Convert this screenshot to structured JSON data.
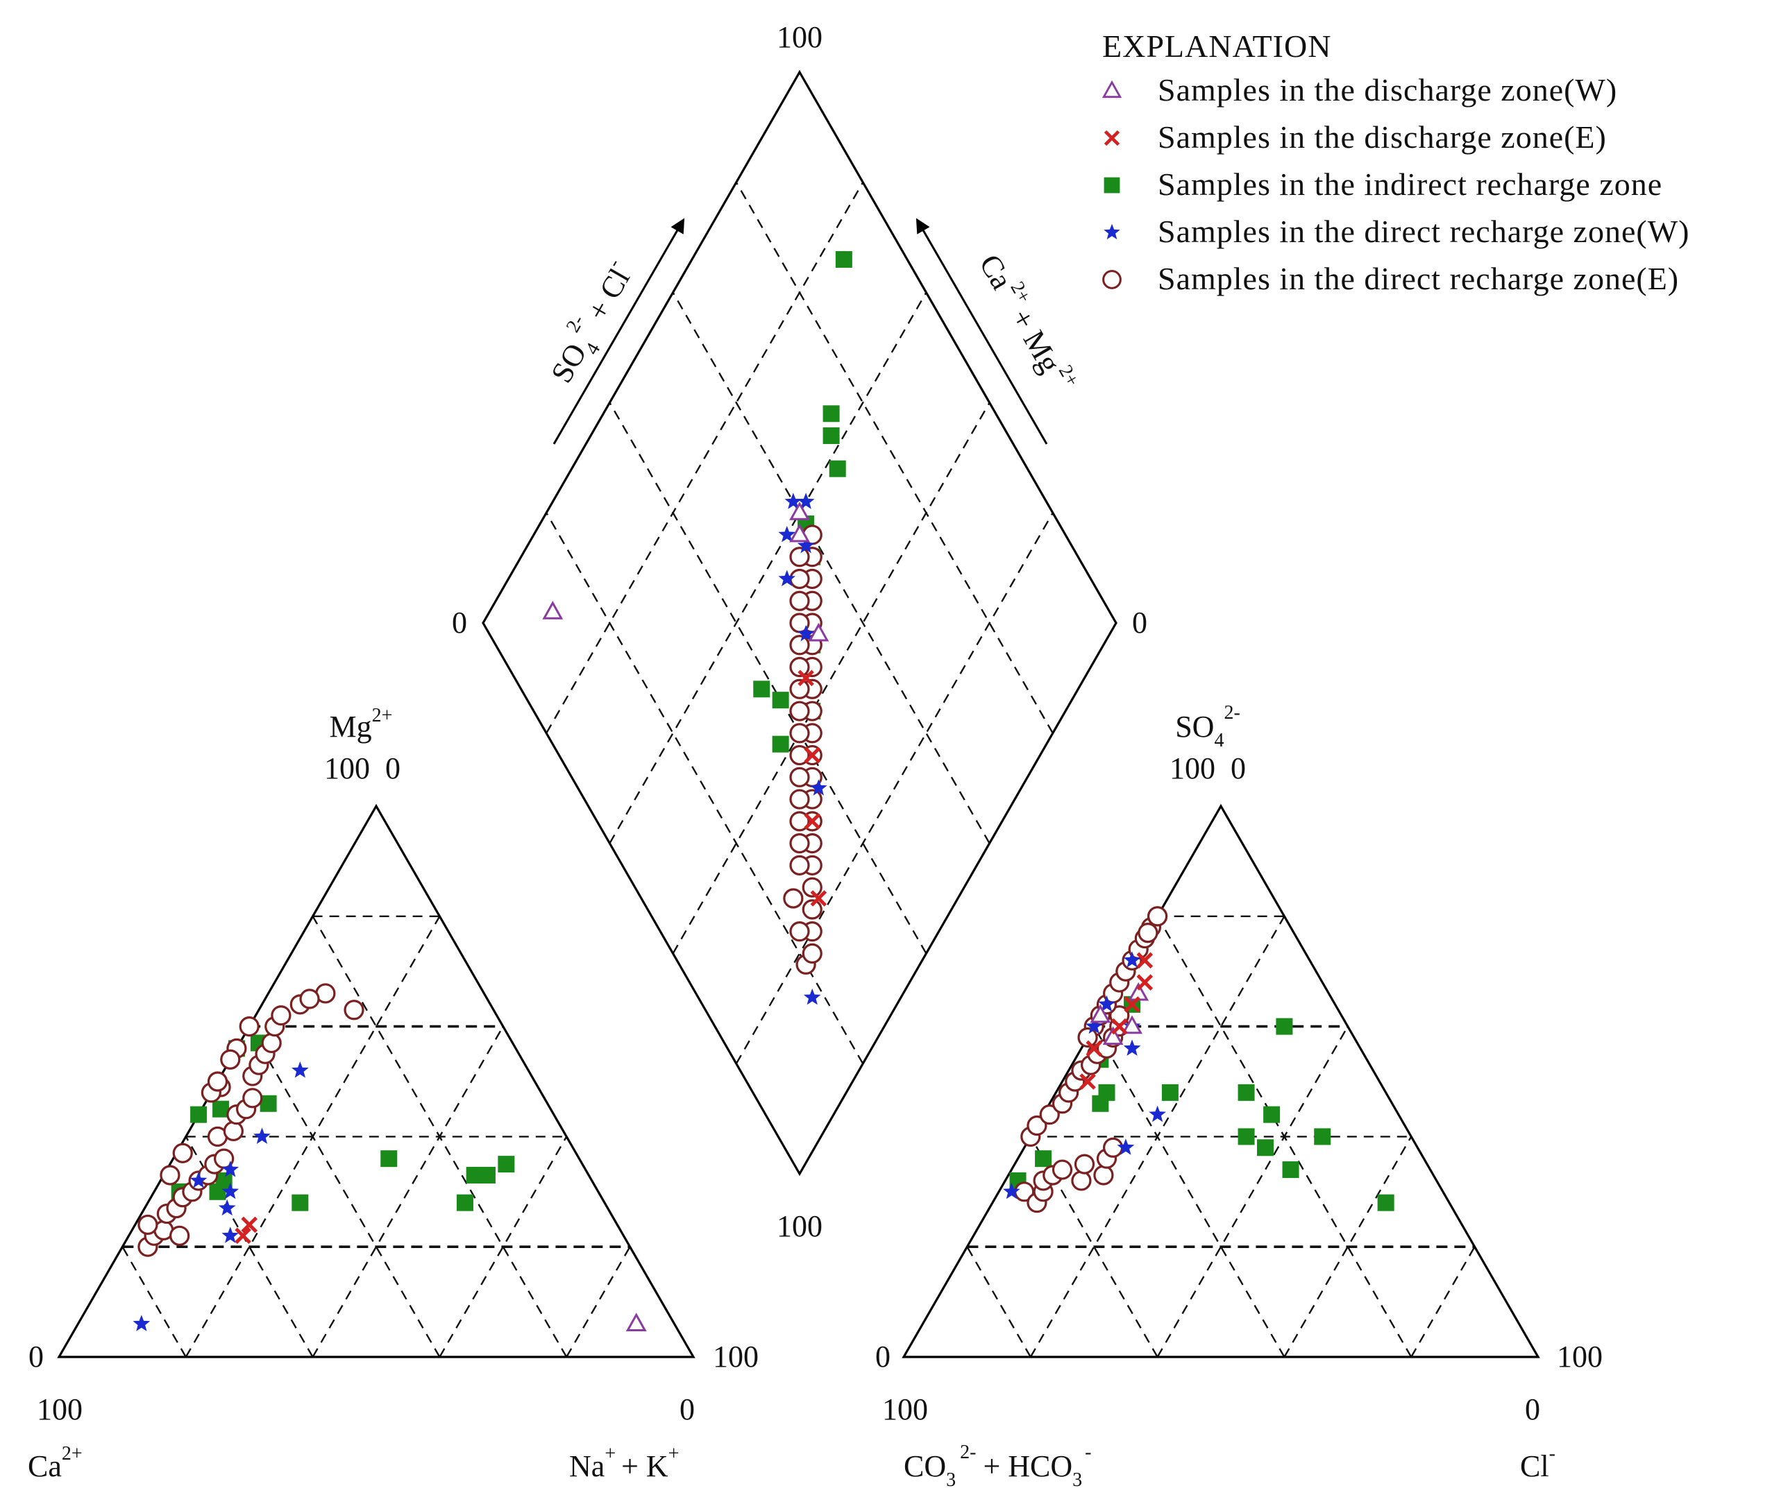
{
  "chart_data": {
    "type": "scatter",
    "subtype": "piper-trilinear",
    "legend": {
      "title": "EXPLANATION",
      "placement": "top-right",
      "entries": [
        {
          "key": "discharge_w",
          "label": "Samples in the discharge zone(W)",
          "marker": "triangle-open",
          "color": "#8a3aa0"
        },
        {
          "key": "discharge_e",
          "label": "Samples in the discharge zone(E)",
          "marker": "x",
          "color": "#d42020"
        },
        {
          "key": "indirect",
          "label": "Samples in the indirect  recharge zone",
          "marker": "square",
          "color": "#1a8a1a"
        },
        {
          "key": "direct_w",
          "label": "Samples in the direct  recharge zone(W)",
          "marker": "star",
          "color": "#1a2ad0"
        },
        {
          "key": "direct_e",
          "label": "Samples in the direct  recharge zone(E)",
          "marker": "circle-open",
          "color": "#7a2020"
        }
      ]
    },
    "cation_triangle": {
      "apex": {
        "name": "Mg",
        "sup": "2+",
        "label_left": "100",
        "label_right": "0"
      },
      "bottom_left": {
        "name": "Ca",
        "sup": "2+",
        "tick": "0",
        "below": "100"
      },
      "bottom_right": {
        "name": "Na",
        "sup": "+",
        "name2": "+ K",
        "sup2": "+",
        "tick": "100",
        "below": "0"
      },
      "series": {
        "direct_e": [
          [
            76,
            20
          ],
          [
            74,
            22
          ],
          [
            72,
            23
          ],
          [
            70,
            26
          ],
          [
            68,
            27
          ],
          [
            66,
            29
          ],
          [
            64,
            30
          ],
          [
            62,
            32
          ],
          [
            60,
            33
          ],
          [
            58,
            35
          ],
          [
            56,
            36
          ],
          [
            62,
            37
          ],
          [
            55,
            40
          ],
          [
            52,
            41
          ],
          [
            50,
            44
          ],
          [
            48,
            45
          ],
          [
            46,
            47
          ],
          [
            50,
            49
          ],
          [
            52,
            48
          ],
          [
            54,
            50
          ],
          [
            44,
            51
          ],
          [
            42,
            53
          ],
          [
            40,
            55
          ],
          [
            38,
            57
          ],
          [
            45,
            56
          ],
          [
            47,
            54
          ],
          [
            36,
            60
          ],
          [
            34,
            62
          ],
          [
            30,
            64
          ],
          [
            25,
            66
          ],
          [
            28,
            65
          ],
          [
            40,
            60
          ],
          [
            22,
            63
          ],
          [
            70,
            22
          ],
          [
            74,
            24
          ],
          [
            66,
            33
          ]
        ],
        "direct_w": [
          [
            84,
            6
          ],
          [
            58,
            30
          ],
          [
            60,
            27
          ],
          [
            62,
            32
          ],
          [
            56,
            34
          ],
          [
            48,
            40
          ],
          [
            36,
            52
          ],
          [
            62,
            22
          ]
        ],
        "indirect": [
          [
            44,
            46
          ],
          [
            30,
            36
          ],
          [
            22,
            28
          ],
          [
            16,
            33
          ],
          [
            12,
            35
          ],
          [
            18,
            33
          ],
          [
            48,
            28
          ],
          [
            52,
            45
          ],
          [
            56,
            44
          ],
          [
            60,
            30
          ],
          [
            58,
            32
          ],
          [
            66,
            30
          ],
          [
            40,
            57
          ],
          [
            44,
            56
          ]
        ],
        "discharge_w": [
          [
            6,
            6
          ]
        ],
        "discharge_e": [
          [
            60,
            22
          ],
          [
            58,
            24
          ]
        ]
      }
    },
    "anion_triangle": {
      "apex": {
        "name": "SO",
        "sub": "4",
        "sup": "2-",
        "label_left": "100",
        "label_right": "0"
      },
      "bottom_left": {
        "name": "CO",
        "sub": "3",
        "sup": "2-",
        "name2": "+ HCO",
        "sub2": "3",
        "sup2": "-",
        "tick": "0",
        "below": "100"
      },
      "bottom_right": {
        "name": "Cl",
        "sup": "-",
        "tick": "100",
        "below": "0"
      },
      "series": {
        "direct_e": [
          [
            66,
            30
          ],
          [
            65,
            28
          ],
          [
            63,
            30
          ],
          [
            62,
            32
          ],
          [
            60,
            33
          ],
          [
            58,
            34
          ],
          [
            56,
            32
          ],
          [
            54,
            35
          ],
          [
            52,
            33
          ],
          [
            50,
            36
          ],
          [
            48,
            38
          ],
          [
            60,
            40
          ],
          [
            58,
            42
          ],
          [
            55,
            44
          ],
          [
            52,
            46
          ],
          [
            50,
            48
          ],
          [
            48,
            50
          ],
          [
            46,
            52
          ],
          [
            44,
            53
          ],
          [
            42,
            55
          ],
          [
            40,
            56
          ],
          [
            38,
            58
          ],
          [
            36,
            60
          ],
          [
            35,
            62
          ],
          [
            44,
            60
          ],
          [
            46,
            58
          ],
          [
            42,
            62
          ],
          [
            40,
            64
          ],
          [
            38,
            66
          ],
          [
            36,
            68
          ],
          [
            34,
            70
          ],
          [
            38,
            70
          ],
          [
            32,
            72
          ],
          [
            30,
            74
          ],
          [
            28,
            76
          ],
          [
            26,
            78
          ],
          [
            24,
            80
          ],
          [
            27,
            77
          ],
          [
            22,
            80
          ]
        ],
        "direct_w": [
          [
            68,
            30
          ],
          [
            46,
            38
          ],
          [
            38,
            44
          ],
          [
            36,
            56
          ],
          [
            40,
            60
          ],
          [
            34,
            60
          ],
          [
            30,
            72
          ],
          [
            40,
            64
          ]
        ],
        "indirect": [
          [
            34,
            48
          ],
          [
            26,
            40
          ],
          [
            24,
            38
          ],
          [
            22,
            34
          ],
          [
            14,
            40
          ],
          [
            10,
            28
          ],
          [
            32,
            64
          ],
          [
            42,
            54
          ],
          [
            60,
            36
          ],
          [
            66,
            32
          ],
          [
            44,
            48
          ],
          [
            46,
            46
          ],
          [
            22,
            48
          ],
          [
            20,
            44
          ],
          [
            10,
            60
          ]
        ],
        "discharge_w": [
          [
            38,
            58
          ],
          [
            34,
            60
          ],
          [
            42,
            62
          ],
          [
            30,
            66
          ]
        ],
        "discharge_e": [
          [
            46,
            50
          ],
          [
            42,
            56
          ],
          [
            36,
            60
          ],
          [
            32,
            64
          ],
          [
            28,
            68
          ],
          [
            26,
            72
          ]
        ]
      }
    },
    "diamond": {
      "labels": {
        "top": "100",
        "left": "0",
        "right": "0",
        "bottom": "100"
      },
      "left_axis": {
        "name": "SO",
        "sub": "4",
        "sup": "2-",
        "name2": "+ Cl",
        "sup2": "-"
      },
      "right_axis": {
        "name": "Ca",
        "sup": "2+",
        "name2": "+ Mg",
        "sup2": "2+"
      },
      "series": {
        "direct_e": [
          [
            20,
            18
          ],
          [
            22,
            18
          ],
          [
            24,
            20
          ],
          [
            22,
            22
          ],
          [
            26,
            22
          ],
          [
            28,
            24
          ],
          [
            24,
            26
          ],
          [
            30,
            26
          ],
          [
            28,
            28
          ],
          [
            32,
            28
          ],
          [
            30,
            30
          ],
          [
            34,
            30
          ],
          [
            32,
            32
          ],
          [
            36,
            32
          ],
          [
            34,
            34
          ],
          [
            38,
            34
          ],
          [
            36,
            36
          ],
          [
            40,
            36
          ],
          [
            38,
            38
          ],
          [
            42,
            38
          ],
          [
            40,
            40
          ],
          [
            44,
            40
          ],
          [
            42,
            42
          ],
          [
            46,
            42
          ],
          [
            44,
            44
          ],
          [
            48,
            44
          ],
          [
            46,
            46
          ],
          [
            50,
            46
          ],
          [
            48,
            48
          ],
          [
            52,
            48
          ],
          [
            50,
            50
          ],
          [
            54,
            50
          ],
          [
            52,
            52
          ],
          [
            56,
            52
          ],
          [
            54,
            54
          ],
          [
            58,
            54
          ],
          [
            56,
            56
          ],
          [
            60,
            56
          ]
        ],
        "direct_w": [
          [
            18,
            14
          ],
          [
            38,
            32
          ],
          [
            50,
            48
          ],
          [
            58,
            56
          ],
          [
            60,
            62
          ],
          [
            62,
            60
          ],
          [
            56,
            60
          ],
          [
            52,
            56
          ]
        ],
        "indirect": [
          [
            90,
            76
          ],
          [
            72,
            62
          ],
          [
            74,
            64
          ],
          [
            70,
            58
          ],
          [
            60,
            58
          ],
          [
            58,
            54
          ],
          [
            50,
            46
          ],
          [
            44,
            40
          ],
          [
            40,
            46
          ],
          [
            38,
            50
          ],
          [
            36,
            42
          ]
        ],
        "discharge_w": [
          [
            12,
            90
          ],
          [
            60,
            60
          ],
          [
            52,
            46
          ],
          [
            58,
            58
          ]
        ],
        "discharge_e": [
          [
            28,
            22
          ],
          [
            34,
            30
          ],
          [
            40,
            36
          ],
          [
            46,
            44
          ]
        ]
      }
    }
  }
}
